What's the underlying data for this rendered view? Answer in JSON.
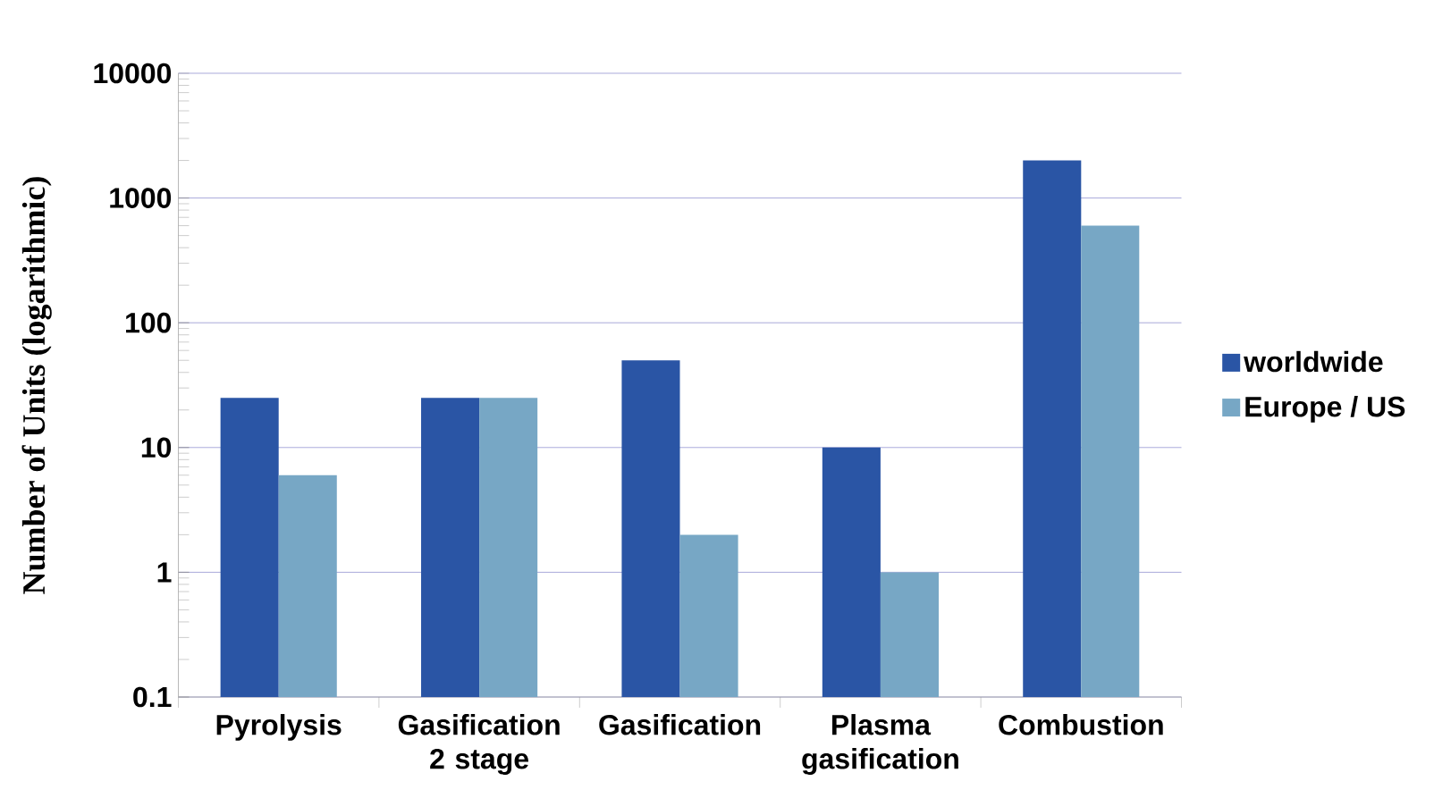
{
  "chart_data": {
    "type": "bar",
    "ylabel": "Number of Units (logarithmic)",
    "categories": [
      "Pyrolysis",
      "Gasification 2 stage",
      "Gasification",
      "Plasma gasification",
      "Combustion"
    ],
    "series": [
      {
        "name": "worldwide",
        "color": "#2a55a5",
        "values": [
          25,
          25,
          50,
          10,
          2000
        ]
      },
      {
        "name": "Europe / US",
        "color": "#77a7c5",
        "values": [
          6,
          25,
          2,
          1,
          600
        ]
      }
    ],
    "log": "y",
    "ylim": [
      0.1,
      10000
    ],
    "yticks": [
      0.1,
      1,
      10,
      100,
      1000,
      10000
    ],
    "grid": "y",
    "legend": "right"
  }
}
